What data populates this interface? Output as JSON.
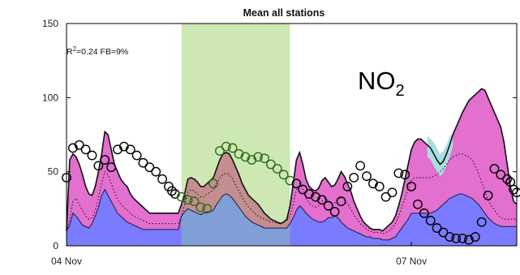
{
  "chart_data": {
    "type": "area",
    "title": "Mean all stations",
    "xlabel": "",
    "ylabel": "",
    "xlim": [
      0,
      141
    ],
    "ylim": [
      0,
      150
    ],
    "yticks": [
      0,
      50,
      100,
      150
    ],
    "xticks": [
      {
        "x": 0,
        "label": "04 Nov"
      },
      {
        "x": 108,
        "label": "07 Nov"
      }
    ],
    "stats_label": {
      "r2_prefix": "R",
      "r2_sup": "2",
      "rest": "=0.24 FB=9%"
    },
    "species_label": {
      "main": "NO",
      "sub": "2"
    },
    "highlight_band": {
      "x_start": 36,
      "x_end": 70,
      "color": "#cde8b3"
    },
    "colors": {
      "base_fill": "#7b7bff",
      "middle_fill": "#e36fcf",
      "top_fill": "#a7dfe0",
      "band_base_fill": "#7f9fd6",
      "band_middle_fill": "#c48d8f",
      "observation_marker": "#000000",
      "band_observation_marker": "#2f6a19"
    },
    "series": [
      {
        "x": [
          0,
          1,
          2,
          3,
          4,
          5,
          6,
          7,
          8,
          9,
          10,
          11,
          12,
          13,
          14,
          15,
          16,
          17,
          18,
          19,
          20,
          21,
          22,
          23,
          24,
          25,
          26,
          27,
          28,
          29,
          30,
          31,
          32,
          33,
          34,
          35,
          36,
          37,
          38,
          39,
          40,
          41,
          42,
          43,
          44,
          45,
          46,
          47,
          48,
          49,
          50,
          51,
          52,
          53,
          54,
          55,
          56,
          57,
          58,
          59,
          60,
          61,
          62,
          63,
          64,
          65,
          66,
          67,
          68,
          69,
          70,
          71,
          72,
          73,
          74,
          75,
          76,
          77,
          78,
          79,
          80,
          81,
          82,
          83,
          84,
          85,
          86,
          87,
          88,
          89,
          90,
          91,
          92,
          93,
          94,
          95,
          96,
          97,
          98,
          99,
          100,
          101,
          102,
          103,
          104,
          105,
          106,
          107,
          108,
          109,
          110,
          111,
          112,
          113,
          114,
          115,
          116,
          117,
          118,
          119,
          120,
          121,
          122,
          123,
          124,
          125,
          126,
          127,
          128,
          129,
          130,
          131,
          132,
          133,
          134,
          135,
          136,
          137,
          138,
          139,
          140,
          141
        ],
        "base": [
          10,
          14,
          22,
          20,
          17,
          14,
          13,
          12,
          15,
          20,
          26,
          34,
          38,
          34,
          30,
          26,
          22,
          20,
          18,
          16,
          15,
          14,
          13,
          12,
          11,
          11,
          11,
          11,
          11,
          11,
          11,
          11,
          11,
          11,
          11,
          11,
          20,
          23,
          25,
          24,
          23,
          22,
          21,
          22,
          23,
          23,
          24,
          28,
          31,
          34,
          35,
          34,
          32,
          29,
          26,
          23,
          20,
          18,
          16,
          15,
          14,
          13,
          12,
          12,
          12,
          12,
          12,
          12,
          12,
          12,
          15,
          19,
          24,
          27,
          25,
          22,
          20,
          18,
          17,
          16,
          16,
          17,
          19,
          19,
          20,
          19,
          16,
          14,
          12,
          11,
          10,
          9,
          8,
          7,
          6,
          6,
          5,
          5,
          5,
          4,
          4,
          4,
          5,
          6,
          9,
          12,
          15,
          18,
          22,
          22,
          22,
          22,
          22,
          22,
          22,
          23,
          24,
          26,
          28,
          30,
          32,
          33,
          34,
          35,
          35,
          34,
          33,
          32,
          30,
          28,
          25,
          22,
          19,
          17,
          15,
          14,
          13,
          13,
          13,
          13,
          13,
          13
        ],
        "total": [
          10,
          58,
          62,
          60,
          55,
          48,
          40,
          35,
          34,
          40,
          50,
          62,
          77,
          75,
          65,
          55,
          50,
          45,
          42,
          40,
          35,
          32,
          30,
          28,
          26,
          24,
          22,
          22,
          22,
          22,
          22,
          22,
          22,
          22,
          22,
          22,
          28,
          35,
          45,
          46,
          45,
          43,
          40,
          40,
          42,
          44,
          46,
          52,
          58,
          62,
          63,
          62,
          58,
          53,
          48,
          42,
          38,
          34,
          32,
          30,
          28,
          25,
          22,
          20,
          18,
          17,
          16,
          15,
          16,
          18,
          27,
          42,
          58,
          63,
          55,
          45,
          40,
          38,
          37,
          39,
          44,
          46,
          43,
          40,
          41,
          45,
          50,
          47,
          42,
          37,
          30,
          25,
          20,
          16,
          14,
          12,
          11,
          11,
          11,
          10,
          12,
          14,
          16,
          20,
          27,
          35,
          45,
          55,
          65,
          70,
          72,
          72,
          70,
          68,
          66,
          62,
          58,
          55,
          57,
          62,
          68,
          75,
          80,
          85,
          90,
          94,
          98,
          100,
          102,
          104,
          106,
          105,
          100,
          95,
          90,
          85,
          80,
          70,
          55,
          40,
          30,
          28
        ],
        "top_extra": [
          {
            "x": 113,
            "value": 74
          },
          {
            "x": 114,
            "value": 72
          },
          {
            "x": 115,
            "value": 70
          },
          {
            "x": 116,
            "value": 66
          },
          {
            "x": 117,
            "value": 62
          },
          {
            "x": 118,
            "value": 64
          },
          {
            "x": 119,
            "value": 68
          },
          {
            "x": 120,
            "value": 74
          },
          {
            "x": 121,
            "value": 76
          }
        ],
        "dotted": [
          10,
          18,
          30,
          32,
          28,
          24,
          20,
          18,
          19,
          24,
          32,
          42,
          50,
          48,
          42,
          36,
          31,
          28,
          26,
          24,
          22,
          20,
          19,
          18,
          17,
          16,
          15,
          15,
          15,
          15,
          15,
          15,
          15,
          15,
          15,
          15,
          20,
          28,
          36,
          38,
          37,
          35,
          33,
          33,
          35,
          36,
          38,
          42,
          46,
          48,
          49,
          48,
          45,
          41,
          37,
          33,
          29,
          26,
          24,
          22,
          20,
          19,
          18,
          17,
          16,
          16,
          15,
          15,
          16,
          17,
          20,
          28,
          38,
          42,
          38,
          32,
          29,
          27,
          26,
          27,
          30,
          32,
          30,
          28,
          29,
          31,
          33,
          31,
          28,
          25,
          21,
          18,
          15,
          13,
          11,
          10,
          9,
          9,
          9,
          8,
          9,
          10,
          12,
          15,
          20,
          26,
          32,
          38,
          44,
          46,
          46,
          46,
          46,
          46,
          46,
          47,
          48,
          50,
          52,
          55,
          58,
          60,
          61,
          62,
          62,
          61,
          60,
          58,
          54,
          49,
          43,
          37,
          31,
          27,
          24,
          21,
          19,
          18,
          18,
          18,
          18,
          18
        ]
      }
    ],
    "observations": [
      {
        "x": 0,
        "y": 46
      },
      {
        "x": 2,
        "y": 66
      },
      {
        "x": 4,
        "y": 68
      },
      {
        "x": 6,
        "y": 65
      },
      {
        "x": 8,
        "y": 61
      },
      {
        "x": 10,
        "y": 54
      },
      {
        "x": 12,
        "y": 58
      },
      {
        "x": 14,
        "y": 53
      },
      {
        "x": 16,
        "y": 65
      },
      {
        "x": 18,
        "y": 67
      },
      {
        "x": 20,
        "y": 65
      },
      {
        "x": 22,
        "y": 61
      },
      {
        "x": 24,
        "y": 56
      },
      {
        "x": 26,
        "y": 53
      },
      {
        "x": 28,
        "y": 50
      },
      {
        "x": 30,
        "y": 45
      },
      {
        "x": 32,
        "y": 40
      },
      {
        "x": 33,
        "y": 37
      },
      {
        "x": 34,
        "y": 35
      },
      {
        "x": 36,
        "y": 33
      },
      {
        "x": 38,
        "y": 31
      },
      {
        "x": 40,
        "y": 30
      },
      {
        "x": 42,
        "y": 26
      },
      {
        "x": 44,
        "y": 25
      },
      {
        "x": 46,
        "y": 42
      },
      {
        "x": 48,
        "y": 64
      },
      {
        "x": 50,
        "y": 67
      },
      {
        "x": 52,
        "y": 66
      },
      {
        "x": 54,
        "y": 62
      },
      {
        "x": 56,
        "y": 60
      },
      {
        "x": 58,
        "y": 58
      },
      {
        "x": 60,
        "y": 60
      },
      {
        "x": 62,
        "y": 59
      },
      {
        "x": 64,
        "y": 55
      },
      {
        "x": 66,
        "y": 52
      },
      {
        "x": 68,
        "y": 48
      },
      {
        "x": 70,
        "y": 44
      },
      {
        "x": 72,
        "y": 42
      },
      {
        "x": 74,
        "y": 38
      },
      {
        "x": 76,
        "y": 35
      },
      {
        "x": 78,
        "y": 33
      },
      {
        "x": 80,
        "y": 31
      },
      {
        "x": 82,
        "y": 27
      },
      {
        "x": 84,
        "y": 23
      },
      {
        "x": 86,
        "y": 30
      },
      {
        "x": 88,
        "y": 40
      },
      {
        "x": 90,
        "y": 46
      },
      {
        "x": 92,
        "y": 54
      },
      {
        "x": 94,
        "y": 47
      },
      {
        "x": 96,
        "y": 42
      },
      {
        "x": 98,
        "y": 40
      },
      {
        "x": 100,
        "y": 33
      },
      {
        "x": 102,
        "y": 36
      },
      {
        "x": 104,
        "y": 49
      },
      {
        "x": 106,
        "y": 48
      },
      {
        "x": 108,
        "y": 40
      },
      {
        "x": 110,
        "y": 28
      },
      {
        "x": 112,
        "y": 22
      },
      {
        "x": 114,
        "y": 17
      },
      {
        "x": 116,
        "y": 12
      },
      {
        "x": 118,
        "y": 9
      },
      {
        "x": 120,
        "y": 6
      },
      {
        "x": 122,
        "y": 5
      },
      {
        "x": 124,
        "y": 5
      },
      {
        "x": 126,
        "y": 4
      },
      {
        "x": 128,
        "y": 6
      },
      {
        "x": 130,
        "y": 16
      },
      {
        "x": 132,
        "y": 34
      },
      {
        "x": 134,
        "y": 52
      },
      {
        "x": 136,
        "y": 48
      },
      {
        "x": 138,
        "y": 45
      },
      {
        "x": 139,
        "y": 43
      },
      {
        "x": 140,
        "y": 38
      },
      {
        "x": 141,
        "y": 36
      }
    ]
  }
}
